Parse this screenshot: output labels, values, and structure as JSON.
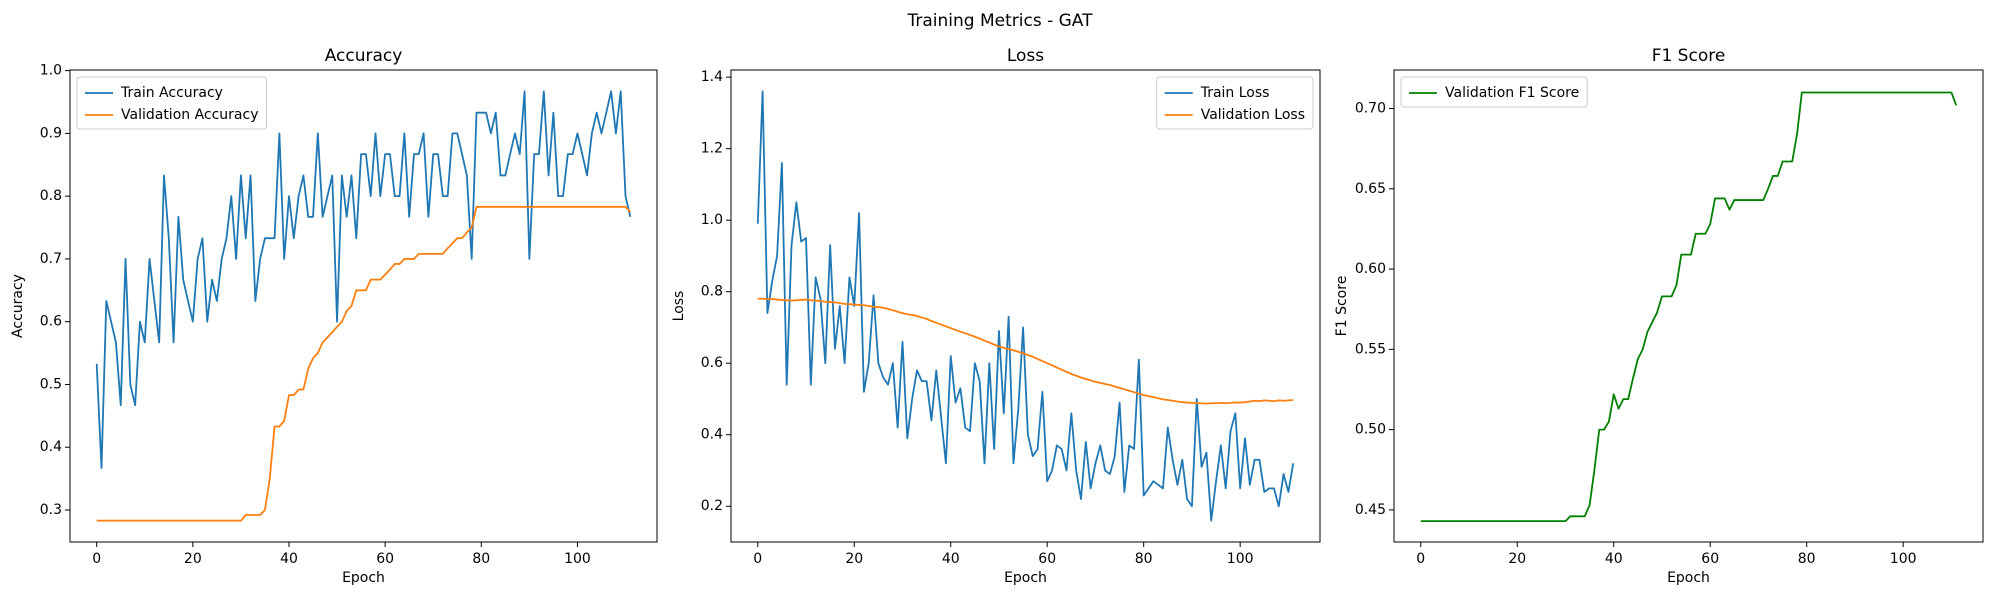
{
  "title": "Training Metrics - GAT",
  "chart_data": [
    {
      "type": "line",
      "title": "Accuracy",
      "xlabel": "Epoch",
      "ylabel": "Accuracy",
      "x": [
        0,
        1,
        2,
        3,
        4,
        5,
        6,
        7,
        8,
        9,
        10,
        11,
        12,
        13,
        14,
        15,
        16,
        17,
        18,
        19,
        20,
        21,
        22,
        23,
        24,
        25,
        26,
        27,
        28,
        29,
        30,
        31,
        32,
        33,
        34,
        35,
        36,
        37,
        38,
        39,
        40,
        41,
        42,
        43,
        44,
        45,
        46,
        47,
        48,
        49,
        50,
        51,
        52,
        53,
        54,
        55,
        56,
        57,
        58,
        59,
        60,
        61,
        62,
        63,
        64,
        65,
        66,
        67,
        68,
        69,
        70,
        71,
        72,
        73,
        74,
        75,
        76,
        77,
        78,
        79,
        80,
        81,
        82,
        83,
        84,
        85,
        86,
        87,
        88,
        89,
        90,
        91,
        92,
        93,
        94,
        95,
        96,
        97,
        98,
        99,
        100,
        101,
        102,
        103,
        104,
        105,
        106,
        107,
        108,
        109,
        110,
        111
      ],
      "xlim": [
        -5.55,
        116.55
      ],
      "xticks": [
        0,
        20,
        40,
        60,
        80,
        100
      ],
      "ylim": [
        0.249,
        1.001
      ],
      "yticks": [
        0.3,
        0.4,
        0.5,
        0.6,
        0.7,
        0.8,
        0.9,
        {
          "value": 1,
          "label": "1.0"
        }
      ],
      "legend": "upper left",
      "series": [
        {
          "name": "Train Accuracy",
          "color": "#1f77b4",
          "values": [
            0.533,
            0.367,
            0.633,
            0.6,
            0.567,
            0.467,
            0.7,
            0.5,
            0.467,
            0.6,
            0.567,
            0.7,
            0.633,
            0.567,
            0.833,
            0.733,
            0.567,
            0.767,
            0.667,
            0.633,
            0.6,
            0.7,
            0.733,
            0.6,
            0.667,
            0.633,
            0.7,
            0.733,
            0.8,
            0.7,
            0.833,
            0.733,
            0.833,
            0.633,
            0.7,
            0.733,
            0.733,
            0.733,
            0.9,
            0.7,
            0.8,
            0.733,
            0.8,
            0.833,
            0.767,
            0.767,
            0.9,
            0.767,
            0.8,
            0.833,
            0.6,
            0.833,
            0.767,
            0.833,
            0.733,
            0.867,
            0.867,
            0.8,
            0.9,
            0.8,
            0.867,
            0.867,
            0.8,
            0.8,
            0.9,
            0.767,
            0.867,
            0.867,
            0.9,
            0.767,
            0.867,
            0.867,
            0.8,
            0.8,
            0.9,
            0.9,
            0.867,
            0.833,
            0.7,
            0.933,
            0.933,
            0.933,
            0.9,
            0.933,
            0.833,
            0.833,
            0.867,
            0.9,
            0.867,
            0.967,
            0.7,
            0.867,
            0.867,
            0.967,
            0.833,
            0.933,
            0.8,
            0.8,
            0.867,
            0.867,
            0.9,
            0.867,
            0.833,
            0.9,
            0.933,
            0.9,
            0.933,
            0.967,
            0.9,
            0.967,
            0.8,
            0.767
          ]
        },
        {
          "name": "Validation Accuracy",
          "color": "#ff7f0e",
          "values": [
            0.283,
            0.283,
            0.283,
            0.283,
            0.283,
            0.283,
            0.283,
            0.283,
            0.283,
            0.283,
            0.283,
            0.283,
            0.283,
            0.283,
            0.283,
            0.283,
            0.283,
            0.283,
            0.283,
            0.283,
            0.283,
            0.283,
            0.283,
            0.283,
            0.283,
            0.283,
            0.283,
            0.283,
            0.283,
            0.283,
            0.283,
            0.292,
            0.292,
            0.292,
            0.292,
            0.3,
            0.35,
            0.433,
            0.433,
            0.442,
            0.483,
            0.483,
            0.492,
            0.492,
            0.525,
            0.542,
            0.55,
            0.567,
            0.575,
            0.583,
            0.592,
            0.6,
            0.617,
            0.625,
            0.65,
            0.65,
            0.65,
            0.667,
            0.667,
            0.667,
            0.675,
            0.683,
            0.692,
            0.692,
            0.7,
            0.7,
            0.7,
            0.708,
            0.708,
            0.708,
            0.708,
            0.708,
            0.708,
            0.717,
            0.725,
            0.733,
            0.733,
            0.742,
            0.75,
            0.783,
            0.783,
            0.783,
            0.783,
            0.783,
            0.783,
            0.783,
            0.783,
            0.783,
            0.783,
            0.783,
            0.783,
            0.783,
            0.783,
            0.783,
            0.783,
            0.783,
            0.783,
            0.783,
            0.783,
            0.783,
            0.783,
            0.783,
            0.783,
            0.783,
            0.783,
            0.783,
            0.783,
            0.783,
            0.783,
            0.783,
            0.783,
            0.775
          ]
        }
      ]
    },
    {
      "type": "line",
      "title": "Loss",
      "xlabel": "Epoch",
      "ylabel": "Loss",
      "x": [
        0,
        1,
        2,
        3,
        4,
        5,
        6,
        7,
        8,
        9,
        10,
        11,
        12,
        13,
        14,
        15,
        16,
        17,
        18,
        19,
        20,
        21,
        22,
        23,
        24,
        25,
        26,
        27,
        28,
        29,
        30,
        31,
        32,
        33,
        34,
        35,
        36,
        37,
        38,
        39,
        40,
        41,
        42,
        43,
        44,
        45,
        46,
        47,
        48,
        49,
        50,
        51,
        52,
        53,
        54,
        55,
        56,
        57,
        58,
        59,
        60,
        61,
        62,
        63,
        64,
        65,
        66,
        67,
        68,
        69,
        70,
        71,
        72,
        73,
        74,
        75,
        76,
        77,
        78,
        79,
        80,
        81,
        82,
        83,
        84,
        85,
        86,
        87,
        88,
        89,
        90,
        91,
        92,
        93,
        94,
        95,
        96,
        97,
        98,
        99,
        100,
        101,
        102,
        103,
        104,
        105,
        106,
        107,
        108,
        109,
        110,
        111
      ],
      "xlim": [
        -5.55,
        116.55
      ],
      "xticks": [
        0,
        20,
        40,
        60,
        80,
        100
      ],
      "ylim": [
        0.1,
        1.42
      ],
      "yticks": [
        0.2,
        0.4,
        0.6,
        0.8,
        {
          "value": 1,
          "label": "1.0"
        },
        1.2,
        1.4
      ],
      "legend": "upper right",
      "series": [
        {
          "name": "Train Loss",
          "color": "#1f77b4",
          "values": [
            0.99,
            1.36,
            0.74,
            0.83,
            0.9,
            1.16,
            0.54,
            0.93,
            1.05,
            0.94,
            0.95,
            0.54,
            0.84,
            0.78,
            0.6,
            0.93,
            0.64,
            0.76,
            0.6,
            0.84,
            0.76,
            1.02,
            0.52,
            0.6,
            0.79,
            0.6,
            0.56,
            0.54,
            0.6,
            0.42,
            0.66,
            0.39,
            0.5,
            0.58,
            0.55,
            0.55,
            0.44,
            0.58,
            0.45,
            0.32,
            0.62,
            0.49,
            0.53,
            0.42,
            0.41,
            0.6,
            0.55,
            0.32,
            0.6,
            0.36,
            0.69,
            0.46,
            0.73,
            0.32,
            0.47,
            0.7,
            0.4,
            0.34,
            0.36,
            0.52,
            0.27,
            0.3,
            0.37,
            0.36,
            0.3,
            0.46,
            0.3,
            0.22,
            0.38,
            0.25,
            0.32,
            0.37,
            0.3,
            0.29,
            0.34,
            0.49,
            0.24,
            0.37,
            0.36,
            0.61,
            0.23,
            0.25,
            0.27,
            0.26,
            0.25,
            0.42,
            0.33,
            0.26,
            0.33,
            0.22,
            0.2,
            0.5,
            0.31,
            0.35,
            0.16,
            0.27,
            0.37,
            0.25,
            0.41,
            0.46,
            0.25,
            0.39,
            0.26,
            0.33,
            0.33,
            0.24,
            0.25,
            0.25,
            0.2,
            0.29,
            0.24,
            0.32
          ]
        },
        {
          "name": "Validation Loss",
          "color": "#ff7f0e",
          "values": [
            0.78,
            0.781,
            0.779,
            0.78,
            0.778,
            0.777,
            0.776,
            0.775,
            0.776,
            0.777,
            0.778,
            0.776,
            0.775,
            0.774,
            0.772,
            0.771,
            0.77,
            0.768,
            0.766,
            0.765,
            0.764,
            0.763,
            0.762,
            0.76,
            0.758,
            0.757,
            0.755,
            0.752,
            0.748,
            0.744,
            0.74,
            0.737,
            0.735,
            0.732,
            0.728,
            0.724,
            0.718,
            0.713,
            0.708,
            0.703,
            0.698,
            0.693,
            0.688,
            0.684,
            0.679,
            0.674,
            0.669,
            0.663,
            0.658,
            0.652,
            0.647,
            0.643,
            0.64,
            0.636,
            0.632,
            0.628,
            0.623,
            0.618,
            0.612,
            0.606,
            0.6,
            0.594,
            0.588,
            0.582,
            0.576,
            0.57,
            0.565,
            0.56,
            0.556,
            0.552,
            0.548,
            0.545,
            0.542,
            0.539,
            0.535,
            0.531,
            0.527,
            0.523,
            0.519,
            0.515,
            0.511,
            0.508,
            0.505,
            0.502,
            0.499,
            0.497,
            0.495,
            0.493,
            0.491,
            0.49,
            0.489,
            0.488,
            0.488,
            0.487,
            0.488,
            0.488,
            0.489,
            0.488,
            0.489,
            0.49,
            0.49,
            0.491,
            0.493,
            0.495,
            0.494,
            0.496,
            0.495,
            0.494,
            0.496,
            0.495,
            0.496,
            0.497
          ]
        }
      ]
    },
    {
      "type": "line",
      "title": "F1 Score",
      "xlabel": "Epoch",
      "ylabel": "F1 Score",
      "x": [
        0,
        1,
        2,
        3,
        4,
        5,
        6,
        7,
        8,
        9,
        10,
        11,
        12,
        13,
        14,
        15,
        16,
        17,
        18,
        19,
        20,
        21,
        22,
        23,
        24,
        25,
        26,
        27,
        28,
        29,
        30,
        31,
        32,
        33,
        34,
        35,
        36,
        37,
        38,
        39,
        40,
        41,
        42,
        43,
        44,
        45,
        46,
        47,
        48,
        49,
        50,
        51,
        52,
        53,
        54,
        55,
        56,
        57,
        58,
        59,
        60,
        61,
        62,
        63,
        64,
        65,
        66,
        67,
        68,
        69,
        70,
        71,
        72,
        73,
        74,
        75,
        76,
        77,
        78,
        79,
        80,
        81,
        82,
        83,
        84,
        85,
        86,
        87,
        88,
        89,
        90,
        91,
        92,
        93,
        94,
        95,
        96,
        97,
        98,
        99,
        100,
        101,
        102,
        103,
        104,
        105,
        106,
        107,
        108,
        109,
        110,
        111
      ],
      "xlim": [
        -5.55,
        116.55
      ],
      "xticks": [
        0,
        20,
        40,
        60,
        80,
        100
      ],
      "ylim": [
        0.43,
        0.724
      ],
      "yticks": [
        0.45,
        {
          "value": 0.5,
          "label": "0.50"
        },
        0.55,
        {
          "value": 0.6,
          "label": "0.60"
        },
        0.65,
        {
          "value": 0.7,
          "label": "0.70"
        }
      ],
      "legend": "upper left",
      "series": [
        {
          "name": "Validation F1 Score",
          "color": "#008000",
          "values": [
            0.443,
            0.443,
            0.443,
            0.443,
            0.443,
            0.443,
            0.443,
            0.443,
            0.443,
            0.443,
            0.443,
            0.443,
            0.443,
            0.443,
            0.443,
            0.443,
            0.443,
            0.443,
            0.443,
            0.443,
            0.443,
            0.443,
            0.443,
            0.443,
            0.443,
            0.443,
            0.443,
            0.443,
            0.443,
            0.443,
            0.443,
            0.446,
            0.446,
            0.446,
            0.446,
            0.453,
            0.475,
            0.5,
            0.5,
            0.505,
            0.522,
            0.513,
            0.519,
            0.519,
            0.532,
            0.544,
            0.55,
            0.561,
            0.567,
            0.573,
            0.583,
            0.583,
            0.583,
            0.59,
            0.609,
            0.609,
            0.609,
            0.622,
            0.622,
            0.622,
            0.628,
            0.644,
            0.644,
            0.644,
            0.637,
            0.643,
            0.643,
            0.643,
            0.643,
            0.643,
            0.643,
            0.643,
            0.65,
            0.658,
            0.658,
            0.667,
            0.667,
            0.667,
            0.684,
            0.71,
            0.71,
            0.71,
            0.71,
            0.71,
            0.71,
            0.71,
            0.71,
            0.71,
            0.71,
            0.71,
            0.71,
            0.71,
            0.71,
            0.71,
            0.71,
            0.71,
            0.71,
            0.71,
            0.71,
            0.71,
            0.71,
            0.71,
            0.71,
            0.71,
            0.71,
            0.71,
            0.71,
            0.71,
            0.71,
            0.71,
            0.71,
            0.702
          ]
        }
      ]
    }
  ]
}
